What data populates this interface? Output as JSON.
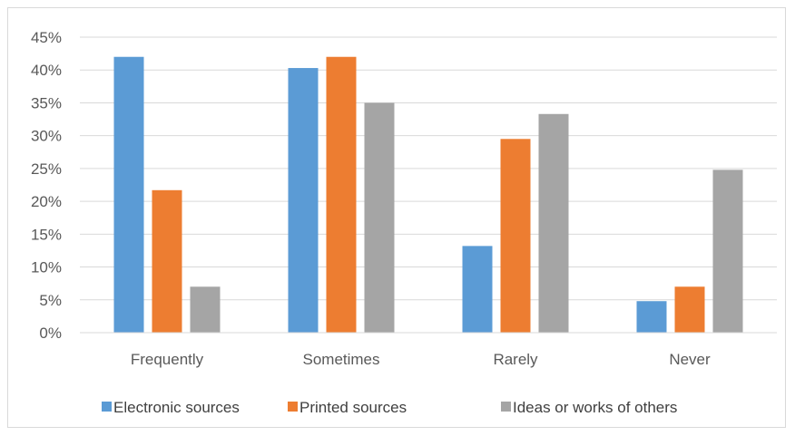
{
  "chart_data": {
    "type": "bar",
    "categories": [
      "Frequently",
      "Sometimes",
      "Rarely",
      "Never"
    ],
    "series": [
      {
        "name": "Electronic sources",
        "color": "#5b9bd5",
        "values": [
          42.0,
          40.3,
          13.2,
          4.8
        ]
      },
      {
        "name": "Printed sources",
        "color": "#ed7d31",
        "values": [
          21.7,
          42.0,
          29.5,
          7.0
        ]
      },
      {
        "name": "Ideas or works of others",
        "color": "#a5a5a5",
        "values": [
          7.0,
          35.0,
          33.3,
          24.8
        ]
      }
    ],
    "y_ticks": [
      "0%",
      "5%",
      "10%",
      "15%",
      "20%",
      "25%",
      "30%",
      "35%",
      "40%",
      "45%"
    ],
    "ylim": [
      0,
      45
    ],
    "y_unit": "percent",
    "grid": true,
    "legend_position": "bottom"
  }
}
